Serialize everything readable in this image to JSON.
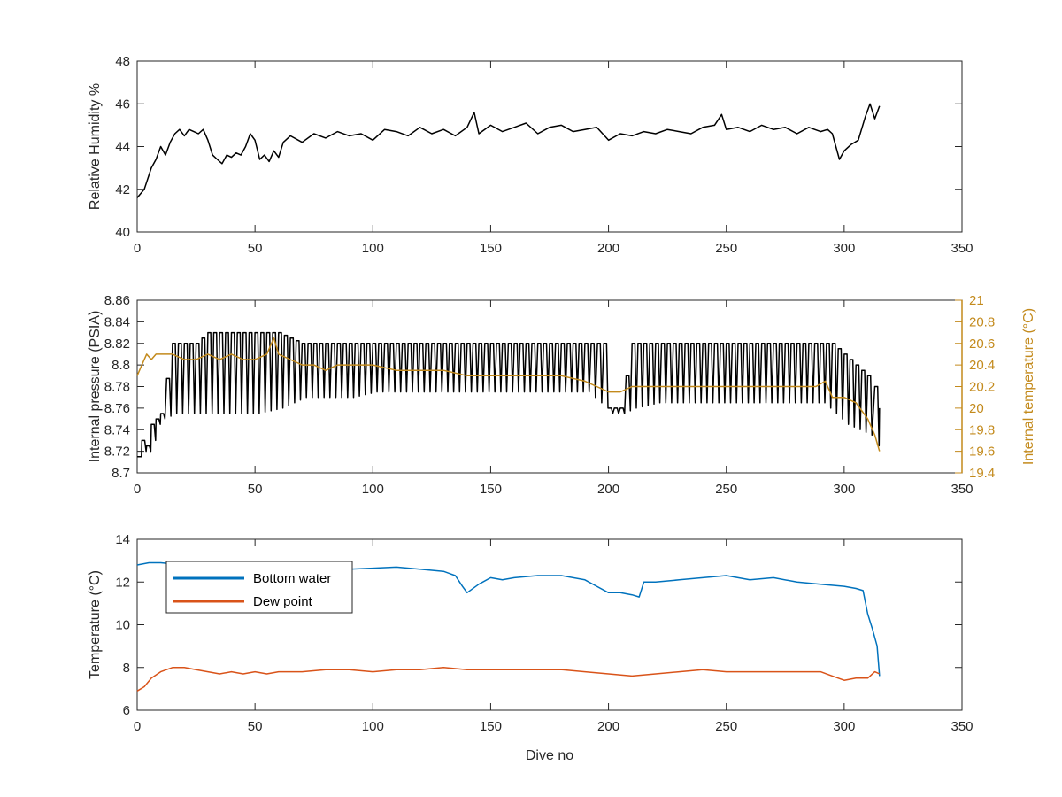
{
  "figure": {
    "xlabel": "Dive no"
  },
  "chart_data": [
    {
      "type": "line",
      "xlabel": "",
      "ylabel": "Relative Humidity %",
      "xlim": [
        0,
        350
      ],
      "ylim": [
        40,
        48
      ],
      "xticks": [
        0,
        50,
        100,
        150,
        200,
        250,
        300,
        350
      ],
      "yticks": [
        40,
        42,
        44,
        46,
        48
      ],
      "series": [
        {
          "color": "#000000",
          "x": [
            0,
            3,
            6,
            8,
            10,
            12,
            14,
            16,
            18,
            20,
            22,
            24,
            26,
            28,
            30,
            32,
            34,
            36,
            38,
            40,
            42,
            44,
            46,
            48,
            50,
            52,
            54,
            56,
            58,
            60,
            62,
            65,
            70,
            75,
            80,
            85,
            90,
            95,
            100,
            105,
            110,
            115,
            120,
            125,
            130,
            135,
            140,
            143,
            145,
            150,
            155,
            160,
            165,
            170,
            175,
            180,
            185,
            190,
            195,
            200,
            205,
            210,
            215,
            220,
            225,
            230,
            235,
            240,
            245,
            248,
            250,
            255,
            260,
            265,
            270,
            275,
            280,
            285,
            290,
            293,
            295,
            298,
            300,
            303,
            306,
            309,
            311,
            313,
            315
          ],
          "values": [
            41.6,
            42.0,
            43.0,
            43.4,
            44.0,
            43.6,
            44.2,
            44.6,
            44.8,
            44.5,
            44.8,
            44.7,
            44.6,
            44.8,
            44.3,
            43.6,
            43.4,
            43.2,
            43.6,
            43.5,
            43.7,
            43.6,
            44.0,
            44.6,
            44.3,
            43.4,
            43.6,
            43.3,
            43.8,
            43.5,
            44.2,
            44.5,
            44.2,
            44.6,
            44.4,
            44.7,
            44.5,
            44.6,
            44.3,
            44.8,
            44.7,
            44.5,
            44.9,
            44.6,
            44.8,
            44.5,
            44.9,
            45.6,
            44.6,
            45.0,
            44.7,
            44.9,
            45.1,
            44.6,
            44.9,
            45.0,
            44.7,
            44.8,
            44.9,
            44.3,
            44.6,
            44.5,
            44.7,
            44.6,
            44.8,
            44.7,
            44.6,
            44.9,
            45.0,
            45.5,
            44.8,
            44.9,
            44.7,
            45.0,
            44.8,
            44.9,
            44.6,
            44.9,
            44.7,
            44.8,
            44.6,
            43.4,
            43.8,
            44.1,
            44.3,
            45.4,
            46.0,
            45.3,
            45.9
          ]
        }
      ]
    },
    {
      "type": "line",
      "xlabel": "",
      "ylabel": "Internal pressure (PSIA)",
      "ylabel_right": "Internal temperature (°C)",
      "xlim": [
        0,
        350
      ],
      "ylim": [
        8.7,
        8.86
      ],
      "ylim_right": [
        19.4,
        21
      ],
      "xticks": [
        0,
        50,
        100,
        150,
        200,
        250,
        300,
        350
      ],
      "yticks": [
        8.7,
        8.72,
        8.74,
        8.76,
        8.78,
        8.8,
        8.82,
        8.84,
        8.86
      ],
      "yticks_right": [
        19.4,
        19.6,
        19.8,
        20,
        20.2,
        20.4,
        20.6,
        20.8,
        21
      ],
      "right_axis_color": "#c38a1c",
      "series": [
        {
          "axis": "left",
          "color": "#000000",
          "x": [
            0,
            2,
            4,
            6,
            8,
            10,
            15,
            20,
            25,
            30,
            40,
            50,
            60,
            70,
            80,
            90,
            100,
            110,
            120,
            130,
            140,
            150,
            160,
            170,
            180,
            190,
            198,
            200,
            205,
            210,
            220,
            230,
            240,
            250,
            260,
            270,
            280,
            290,
            295,
            300,
            305,
            310,
            313,
            315
          ],
          "values": [
            8.715,
            8.73,
            8.725,
            8.745,
            8.75,
            8.755,
            8.82,
            8.82,
            8.82,
            8.83,
            8.83,
            8.83,
            8.83,
            8.82,
            8.82,
            8.82,
            8.82,
            8.82,
            8.82,
            8.82,
            8.82,
            8.82,
            8.82,
            8.82,
            8.82,
            8.82,
            8.82,
            8.76,
            8.76,
            8.82,
            8.82,
            8.82,
            8.82,
            8.82,
            8.82,
            8.82,
            8.82,
            8.82,
            8.82,
            8.81,
            8.8,
            8.79,
            8.78,
            8.76
          ],
          "lows": [
            8.715,
            8.72,
            8.72,
            8.73,
            8.745,
            8.75,
            8.755,
            8.755,
            8.755,
            8.755,
            8.755,
            8.755,
            8.76,
            8.77,
            8.77,
            8.77,
            8.775,
            8.775,
            8.775,
            8.775,
            8.775,
            8.775,
            8.775,
            8.775,
            8.775,
            8.775,
            8.76,
            8.755,
            8.755,
            8.76,
            8.765,
            8.765,
            8.765,
            8.765,
            8.765,
            8.765,
            8.765,
            8.765,
            8.755,
            8.745,
            8.74,
            8.735,
            8.725,
            8.715
          ]
        },
        {
          "axis": "right",
          "color": "#c38a1c",
          "x": [
            0,
            2,
            4,
            6,
            8,
            10,
            15,
            20,
            25,
            30,
            35,
            40,
            45,
            50,
            55,
            58,
            60,
            65,
            70,
            75,
            80,
            85,
            90,
            95,
            100,
            110,
            120,
            130,
            140,
            150,
            160,
            170,
            180,
            190,
            195,
            200,
            205,
            210,
            220,
            230,
            240,
            250,
            260,
            270,
            280,
            288,
            292,
            295,
            300,
            305,
            310,
            313,
            315
          ],
          "values": [
            20.3,
            20.4,
            20.5,
            20.45,
            20.5,
            20.5,
            20.5,
            20.45,
            20.45,
            20.5,
            20.45,
            20.5,
            20.45,
            20.45,
            20.5,
            20.65,
            20.5,
            20.45,
            20.4,
            20.4,
            20.35,
            20.4,
            20.4,
            20.4,
            20.4,
            20.35,
            20.35,
            20.35,
            20.3,
            20.3,
            20.3,
            20.3,
            20.3,
            20.25,
            20.2,
            20.15,
            20.15,
            20.2,
            20.2,
            20.2,
            20.2,
            20.2,
            20.2,
            20.2,
            20.2,
            20.2,
            20.25,
            20.1,
            20.1,
            20.05,
            19.9,
            19.75,
            19.6
          ]
        }
      ]
    },
    {
      "type": "line",
      "xlabel": "Dive no",
      "ylabel": "Temperature (°C)",
      "xlim": [
        0,
        350
      ],
      "ylim": [
        6,
        14
      ],
      "xticks": [
        0,
        50,
        100,
        150,
        200,
        250,
        300,
        350
      ],
      "yticks": [
        6,
        8,
        10,
        12,
        14
      ],
      "legend": "top-left",
      "series": [
        {
          "name": "Bottom water",
          "color": "#0072bd",
          "x": [
            0,
            5,
            10,
            20,
            30,
            40,
            50,
            60,
            70,
            80,
            90,
            100,
            110,
            120,
            130,
            135,
            138,
            140,
            145,
            150,
            155,
            160,
            170,
            180,
            190,
            195,
            200,
            205,
            210,
            213,
            215,
            220,
            230,
            240,
            250,
            260,
            270,
            280,
            290,
            300,
            305,
            308,
            310,
            312,
            314,
            315
          ],
          "values": [
            12.8,
            12.9,
            12.9,
            12.8,
            12.8,
            12.8,
            12.75,
            12.7,
            12.7,
            12.65,
            12.6,
            12.65,
            12.7,
            12.6,
            12.5,
            12.3,
            11.8,
            11.5,
            11.9,
            12.2,
            12.1,
            12.2,
            12.3,
            12.3,
            12.1,
            11.8,
            11.5,
            11.5,
            11.4,
            11.3,
            12.0,
            12.0,
            12.1,
            12.2,
            12.3,
            12.1,
            12.2,
            12.0,
            11.9,
            11.8,
            11.7,
            11.6,
            10.5,
            9.8,
            9.0,
            7.6
          ]
        },
        {
          "name": "Dew point",
          "color": "#d95319",
          "x": [
            0,
            3,
            6,
            10,
            15,
            20,
            25,
            30,
            35,
            40,
            45,
            50,
            55,
            60,
            70,
            80,
            90,
            100,
            110,
            120,
            130,
            140,
            150,
            160,
            170,
            180,
            190,
            200,
            210,
            220,
            230,
            240,
            250,
            260,
            270,
            280,
            290,
            295,
            300,
            305,
            310,
            313,
            315
          ],
          "values": [
            6.9,
            7.1,
            7.5,
            7.8,
            8.0,
            8.0,
            7.9,
            7.8,
            7.7,
            7.8,
            7.7,
            7.8,
            7.7,
            7.8,
            7.8,
            7.9,
            7.9,
            7.8,
            7.9,
            7.9,
            8.0,
            7.9,
            7.9,
            7.9,
            7.9,
            7.9,
            7.8,
            7.7,
            7.6,
            7.7,
            7.8,
            7.9,
            7.8,
            7.8,
            7.8,
            7.8,
            7.8,
            7.6,
            7.4,
            7.5,
            7.5,
            7.8,
            7.7
          ]
        }
      ]
    }
  ]
}
